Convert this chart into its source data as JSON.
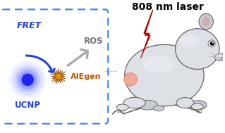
{
  "title": "808 nm laser",
  "title_fontsize": 10,
  "title_weight": "bold",
  "fret_label": "FRET",
  "ros_label": "ROS",
  "ucnp_label": "UCNP",
  "aigen_label": "AIEgen",
  "bg_color": "#ffffff",
  "box_color": "#4488ee",
  "ucnp_color_center": "#2222ee",
  "ucnp_color_glow": "#7788ff",
  "fret_arrow_color": "#2244cc",
  "ros_arrow_color": "#999999",
  "aigen_color": "#bb5500",
  "mouse_body_color": "#dde0e5",
  "mouse_outline_color": "#666666",
  "laser_color": "#cc0000",
  "tumor_color": "#f0a898",
  "dot_color": "#666666",
  "mouse_light_color": "#eef0f5"
}
